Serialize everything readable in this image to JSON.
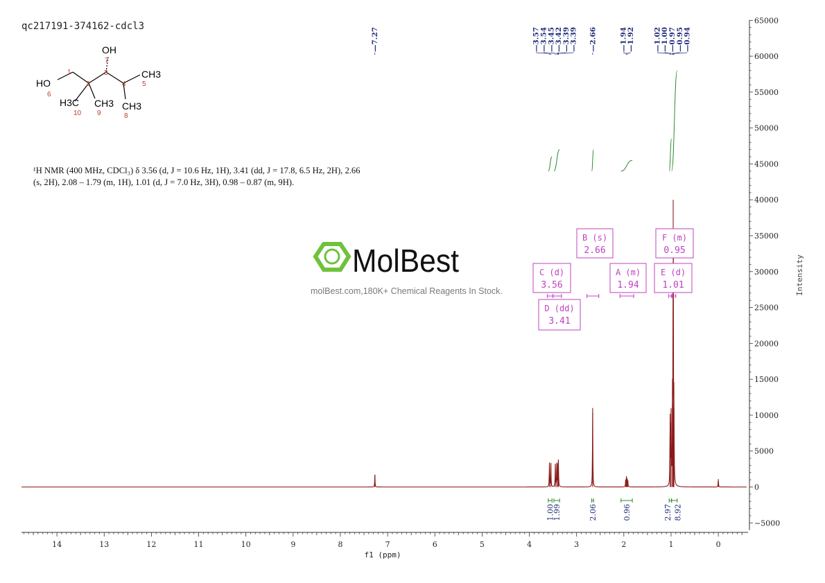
{
  "sample_id": "qc217191-374162-cdcl3",
  "description_lines": [
    "¹H NMR (400 MHz, CDCl₃) δ 3.56 (d, J = 10.6 Hz, 1H), 3.41 (dd, J = 17.8, 6.5 Hz, 2H), 2.66",
    "(s, 2H), 2.08 – 1.79 (m, 1H), 1.01 (d, J = 7.0 Hz, 3H), 0.98 – 0.87 (m, 9H)."
  ],
  "watermark": {
    "brand": "MolBest",
    "tagline": "molBest.com,180K+ Chemical Reagents In Stock."
  },
  "molecule": {
    "atoms": {
      "oh_top": "OH",
      "ho_left": "HO",
      "ch3_5": "CH3",
      "ch3_8": "CH3",
      "ch3_9": "CH3",
      "h3c_10": "H3C"
    },
    "numbers": [
      "1",
      "2",
      "3",
      "4",
      "5",
      "6",
      "7",
      "8",
      "9",
      "10"
    ]
  },
  "chart_data": {
    "type": "line",
    "xlabel": "f1 (ppm)",
    "ylabel": "Intensity",
    "xlim": [
      14.75,
      -0.6
    ],
    "ylim": [
      -6000,
      65000
    ],
    "x_ticks": [
      14,
      13,
      12,
      11,
      10,
      9,
      8,
      7,
      6,
      5,
      4,
      3,
      2,
      1,
      0
    ],
    "y_ticks": [
      -5000,
      0,
      5000,
      10000,
      15000,
      20000,
      25000,
      30000,
      35000,
      40000,
      45000,
      50000,
      55000,
      60000,
      65000
    ],
    "peaks": [
      {
        "ppm": 7.27,
        "height": 1700
      },
      {
        "ppm": 3.575,
        "height": 3400
      },
      {
        "ppm": 3.545,
        "height": 3300
      },
      {
        "ppm": 3.45,
        "height": 3100
      },
      {
        "ppm": 3.42,
        "height": 3200
      },
      {
        "ppm": 3.395,
        "height": 3250
      },
      {
        "ppm": 3.385,
        "height": 3200
      },
      {
        "ppm": 2.66,
        "height": 11000
      },
      {
        "ppm": 1.96,
        "height": 1050
      },
      {
        "ppm": 1.945,
        "height": 1300
      },
      {
        "ppm": 1.93,
        "height": 1200
      },
      {
        "ppm": 1.915,
        "height": 800
      },
      {
        "ppm": 1.02,
        "height": 10200
      },
      {
        "ppm": 1.0,
        "height": 9800
      },
      {
        "ppm": 0.97,
        "height": 11500
      },
      {
        "ppm": 0.955,
        "height": 40000
      },
      {
        "ppm": 0.94,
        "height": 11000
      },
      {
        "ppm": 0.0,
        "height": 1100
      }
    ],
    "peak_labels": {
      "groups": [
        {
          "values": [
            "7.27"
          ],
          "ppm": [
            7.27
          ]
        },
        {
          "values": [
            "3.57",
            "3.54",
            "3.45",
            "3.42",
            "3.39",
            "3.39"
          ],
          "ppm": [
            3.575,
            3.545,
            3.45,
            3.42,
            3.395,
            3.385
          ]
        },
        {
          "values": [
            "2.66"
          ],
          "ppm": [
            2.66
          ]
        },
        {
          "values": [
            "1.94",
            "1.92"
          ],
          "ppm": [
            1.945,
            1.925
          ]
        },
        {
          "values": [
            "1.02",
            "1.00",
            "0.97",
            "0.95",
            "0.94"
          ],
          "ppm": [
            1.02,
            1.0,
            0.97,
            0.955,
            0.94
          ]
        }
      ]
    },
    "integrals": [
      {
        "from": 3.6,
        "to": 3.52,
        "value": "1.00"
      },
      {
        "from": 3.48,
        "to": 3.36,
        "value": "1.99"
      },
      {
        "from": 2.68,
        "to": 2.64,
        "value": "2.06"
      },
      {
        "from": 2.06,
        "to": 1.82,
        "value": "0.96"
      },
      {
        "from": 1.04,
        "to": 0.99,
        "value": "2.97"
      },
      {
        "from": 0.99,
        "to": 0.87,
        "value": "8.92"
      }
    ],
    "integral_curves": [
      {
        "from": 3.6,
        "to": 3.52,
        "y_start": 44000,
        "y_end": 46000
      },
      {
        "from": 3.48,
        "to": 3.36,
        "y_start": 44000,
        "y_end": 47000
      },
      {
        "from": 2.68,
        "to": 2.64,
        "y_start": 44000,
        "y_end": 47000
      },
      {
        "from": 2.06,
        "to": 1.82,
        "y_start": 44000,
        "y_end": 45500
      },
      {
        "from": 1.04,
        "to": 0.99,
        "y_start": 44000,
        "y_end": 48500
      },
      {
        "from": 0.99,
        "to": 0.87,
        "y_start": 44000,
        "y_end": 58000
      }
    ],
    "multiplets": [
      {
        "letter": "B",
        "type": "s",
        "shift": "2.66",
        "range": [
          2.78,
          2.53
        ]
      },
      {
        "letter": "F",
        "type": "m",
        "shift": "0.95",
        "range": [
          0.99,
          0.9
        ]
      },
      {
        "letter": "C",
        "type": "d",
        "shift": "3.56",
        "range": [
          3.62,
          3.5
        ]
      },
      {
        "letter": "A",
        "type": "m",
        "shift": "1.94",
        "range": [
          2.08,
          1.79
        ]
      },
      {
        "letter": "E",
        "type": "d",
        "shift": "1.01",
        "range": [
          1.05,
          0.98
        ]
      },
      {
        "letter": "D",
        "type": "dd",
        "shift": "3.41",
        "range": [
          3.5,
          3.32
        ]
      }
    ],
    "colors": {
      "spectrum": "#8b1a1a",
      "peak_labels": "#1f2a7a",
      "integrals": "#2e8b2e",
      "multiplets": "#c040c0",
      "watermark": "#6fc23a"
    }
  }
}
